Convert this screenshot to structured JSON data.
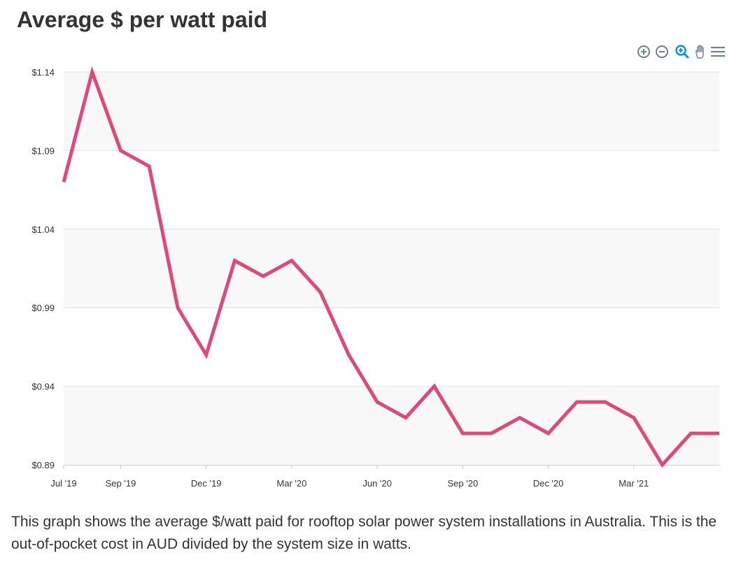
{
  "page": {
    "title": "Average $ per watt paid",
    "description": "This graph shows the average $/watt paid for rooftop solar power system installations in Australia. This is the out-of-pocket cost in AUD divided by the system size in watts."
  },
  "toolbar": {
    "icons": [
      "zoom-in-icon",
      "zoom-out-icon",
      "magnifier-zoom-icon",
      "pan-hand-icon",
      "menu-icon"
    ]
  },
  "colors": {
    "line": "#e0487b",
    "band": "#f8f8f8",
    "grid": "#e2e2e2",
    "axis": "#333333",
    "toolbar_icon": "#6e8192",
    "toolbar_active": "#008ffb"
  },
  "chart_data": {
    "type": "line",
    "title": "Average $ per watt paid",
    "xlabel": "",
    "ylabel": "",
    "x": [
      "2019-07",
      "2019-08",
      "2019-09",
      "2019-10",
      "2019-11",
      "2019-12",
      "2020-01",
      "2020-02",
      "2020-03",
      "2020-04",
      "2020-05",
      "2020-06",
      "2020-07",
      "2020-08",
      "2020-09",
      "2020-10",
      "2020-11",
      "2020-12",
      "2021-01",
      "2021-02",
      "2021-03",
      "2021-04",
      "2021-05",
      "2021-06"
    ],
    "series": [
      {
        "values": [
          1.07,
          1.14,
          1.09,
          1.08,
          0.99,
          0.96,
          1.02,
          1.01,
          1.02,
          1.0,
          0.96,
          0.93,
          0.92,
          0.94,
          0.91,
          0.91,
          0.92,
          0.91,
          0.93,
          0.93,
          0.92,
          0.89,
          0.91,
          0.91
        ]
      }
    ],
    "ylim": [
      0.89,
      1.14
    ],
    "y_ticks": [
      "$0.89",
      "$0.94",
      "$0.99",
      "$1.04",
      "$1.09",
      "$1.14"
    ],
    "x_ticks": [
      {
        "at": "2019-07",
        "label": "Jul '19"
      },
      {
        "at": "2019-09",
        "label": "Sep '19"
      },
      {
        "at": "2019-12",
        "label": "Dec '19"
      },
      {
        "at": "2020-03",
        "label": "Mar '20"
      },
      {
        "at": "2020-06",
        "label": "Jun '20"
      },
      {
        "at": "2020-09",
        "label": "Sep '20"
      },
      {
        "at": "2020-12",
        "label": "Dec '20"
      },
      {
        "at": "2021-03",
        "label": "Mar '21"
      }
    ],
    "grid": true,
    "legend": "none"
  }
}
